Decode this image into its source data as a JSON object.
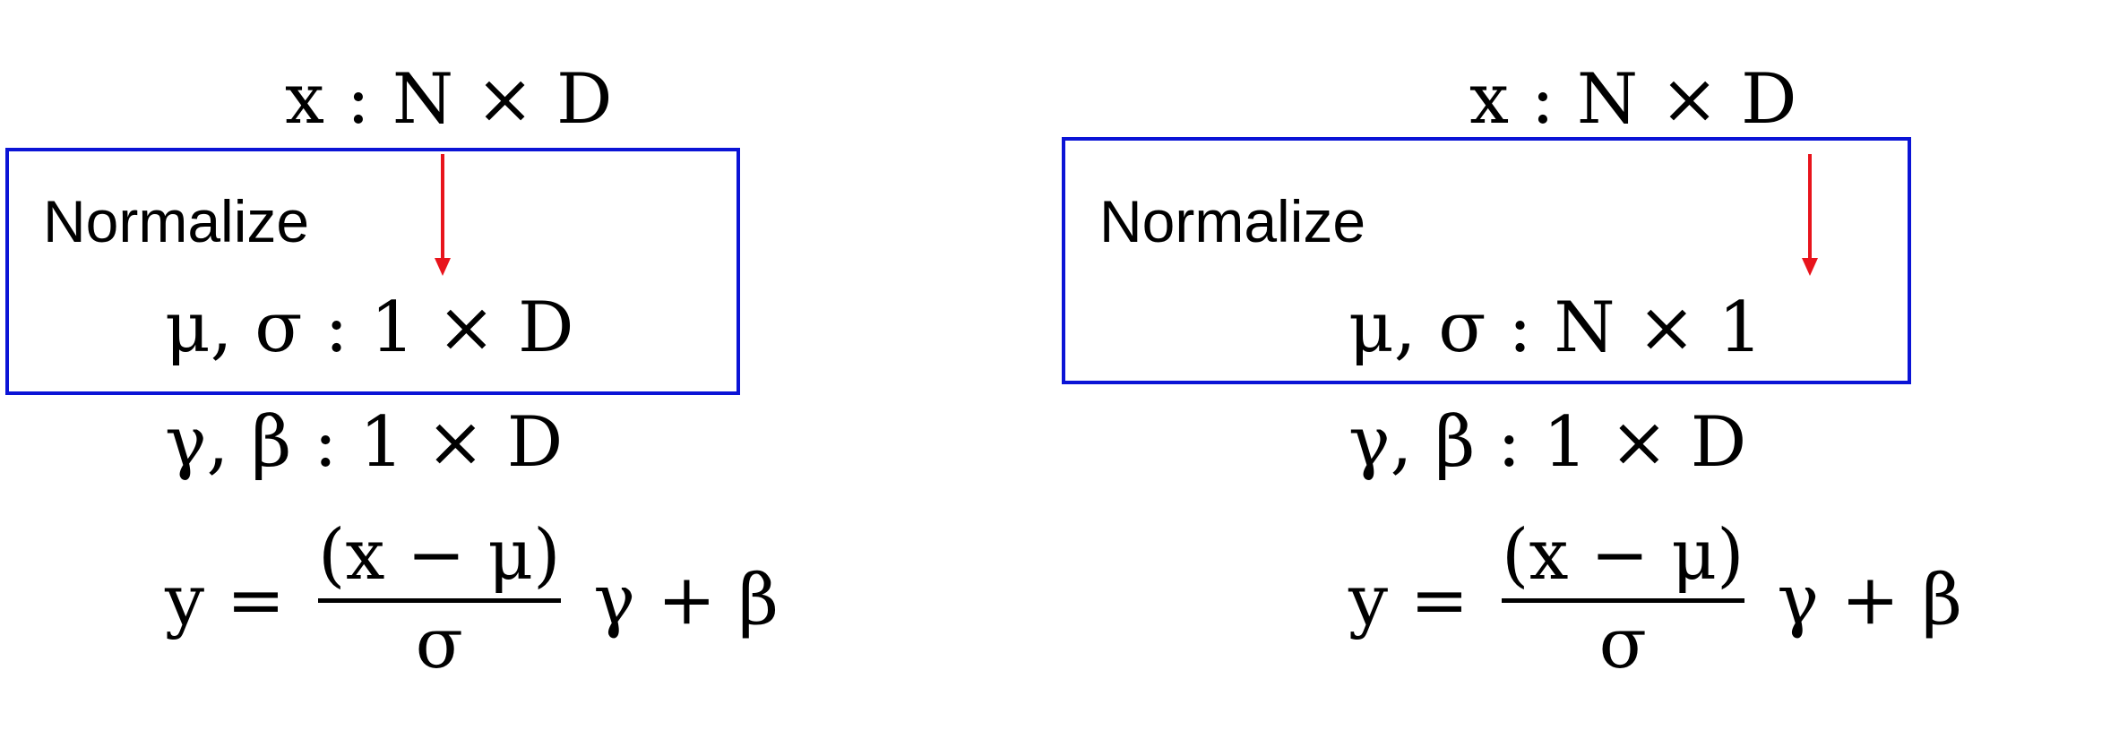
{
  "panels": [
    {
      "id": "left",
      "input_shape": "x : N × D",
      "box_label": "Normalize",
      "stats_shape": "μ, σ  : 1 × D",
      "params_shape": "γ, β  : 1 × D",
      "formula": {
        "lhs": "y =",
        "numerator": "(x − μ)",
        "denominator": "σ",
        "tail": "γ + β"
      }
    },
    {
      "id": "right",
      "input_shape": "x : N × D",
      "box_label": "Normalize",
      "stats_shape": "μ, σ  : N × 1",
      "params_shape": "γ, β  : 1 × D",
      "formula": {
        "lhs": "y =",
        "numerator": "(x − μ)",
        "denominator": "σ",
        "tail": "γ + β"
      }
    }
  ],
  "colors": {
    "box_border": "#0b14d6",
    "arrow": "#e8141c",
    "text": "#000000"
  }
}
